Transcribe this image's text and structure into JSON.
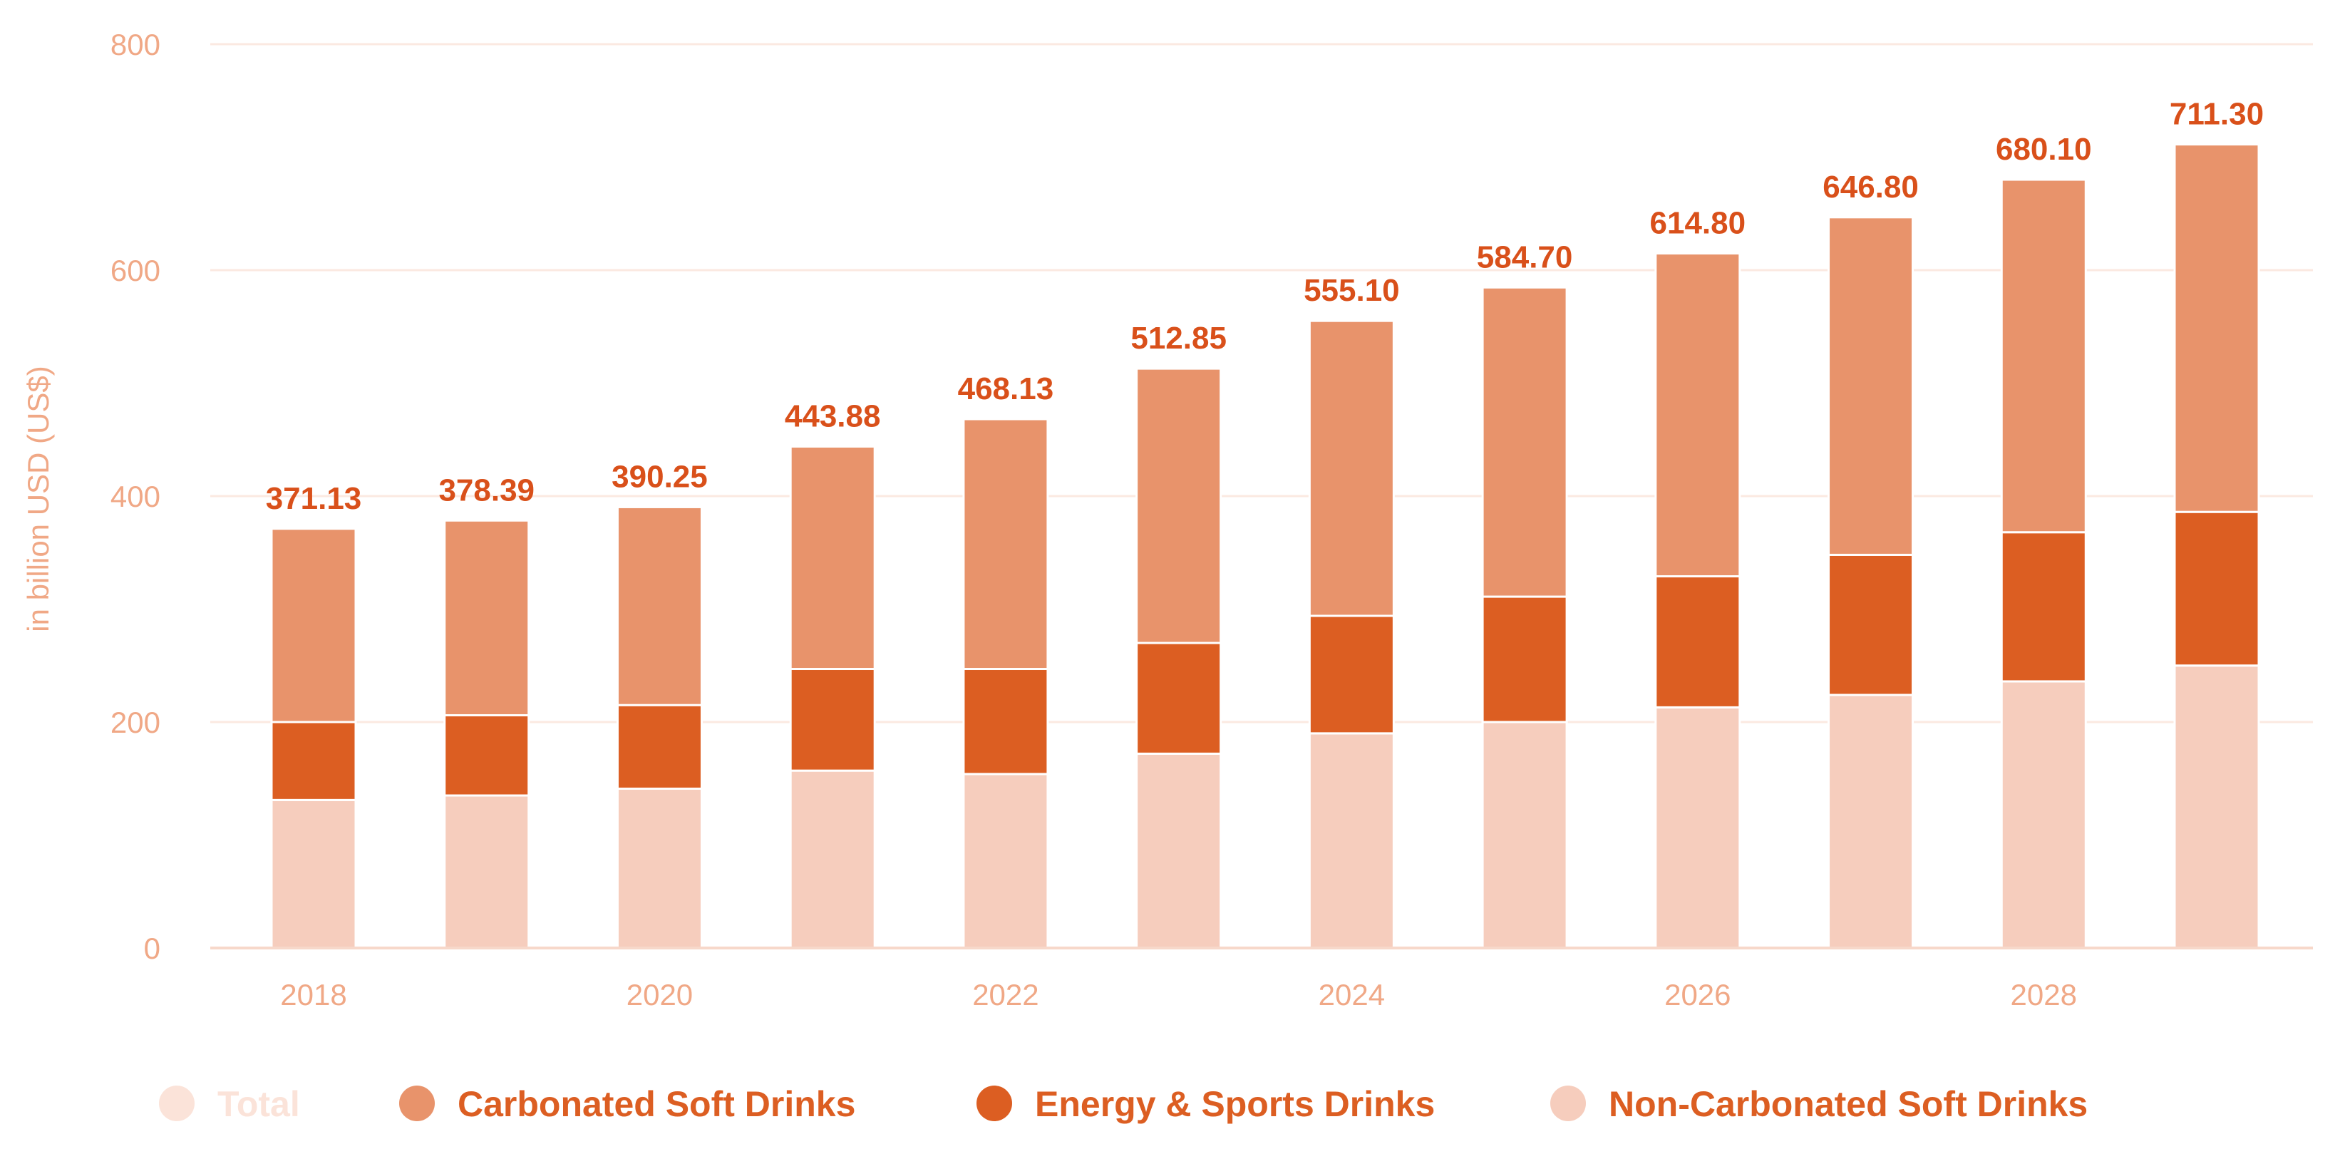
{
  "chart_data": {
    "type": "bar",
    "stacked": true,
    "title": "",
    "xlabel": "",
    "ylabel": "in billion USD (US$)",
    "ylim": [
      0,
      800
    ],
    "yticks": [
      0,
      200,
      400,
      600,
      800
    ],
    "grid": true,
    "legend_position": "bottom",
    "categories": [
      "2018",
      "2019",
      "2020",
      "2021",
      "2022",
      "2023",
      "2024",
      "2025",
      "2026",
      "2027",
      "2028",
      "2029"
    ],
    "x_tick_labels": [
      "2018",
      "",
      "2020",
      "",
      "2022",
      "",
      "2024",
      "",
      "2026",
      "",
      "2028",
      ""
    ],
    "totals": [
      371.13,
      378.39,
      390.25,
      443.88,
      468.13,
      512.85,
      555.1,
      584.7,
      614.8,
      646.8,
      680.1,
      711.3
    ],
    "total_labels": [
      "371.13",
      "378.39",
      "390.25",
      "443.88",
      "468.13",
      "512.85",
      "555.10",
      "584.70",
      "614.80",
      "646.80",
      "680.10",
      "711.30"
    ],
    "series": [
      {
        "name": "Non-Carbonated Soft Drinks",
        "color": "#f6cdbd",
        "values": [
          131,
          135,
          141,
          157,
          154,
          172,
          190,
          200,
          213,
          224,
          236,
          250
        ]
      },
      {
        "name": "Energy & Sports Drinks",
        "color": "#dc5e22",
        "values": [
          69,
          71,
          74,
          90,
          93,
          98,
          104,
          111,
          116,
          124,
          132,
          136
        ]
      },
      {
        "name": "Carbonated Soft Drinks",
        "color": "#e8936b",
        "values": [
          171.13,
          172.39,
          175.25,
          196.88,
          221.13,
          242.85,
          261.1,
          273.7,
          285.8,
          298.8,
          312.1,
          325.3
        ]
      }
    ],
    "legend": [
      {
        "label": "Total",
        "color": "#fbe3d9",
        "text_color": "#fbe3d9"
      },
      {
        "label": "Carbonated Soft Drinks",
        "color": "#e8936b",
        "text_color": "#dc5e22"
      },
      {
        "label": "Energy & Sports Drinks",
        "color": "#dc5e22",
        "text_color": "#dc5e22"
      },
      {
        "label": "Non-Carbonated Soft Drinks",
        "color": "#f6cdbd",
        "text_color": "#dc5e22"
      }
    ],
    "colors": {
      "axis_text": "#f0a886",
      "grid": "#fbe9e1",
      "total_label": "#d9501a"
    }
  }
}
